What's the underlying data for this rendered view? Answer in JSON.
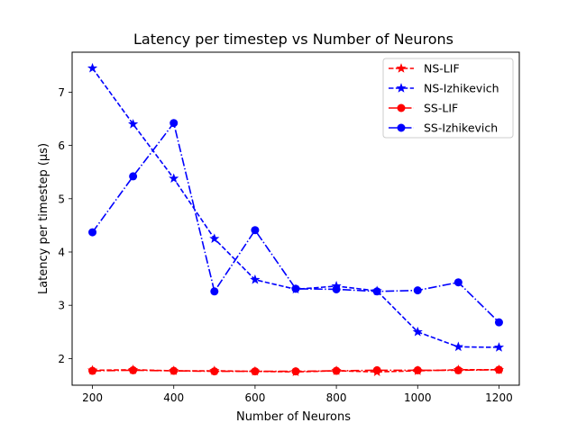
{
  "chart_data": {
    "type": "line",
    "title": "Latency per timestep vs Number of Neurons",
    "xlabel": "Number of Neurons",
    "ylabel": "Latency per timestep (µs)",
    "xlim": [
      150,
      1250
    ],
    "ylim": [
      1.5,
      7.75
    ],
    "xticks": [
      200,
      400,
      600,
      800,
      1000,
      1200
    ],
    "yticks": [
      2,
      3,
      4,
      5,
      6,
      7
    ],
    "grid": false,
    "legend_position": "top-right",
    "x": [
      200,
      300,
      400,
      500,
      600,
      700,
      800,
      900,
      1000,
      1100,
      1200
    ],
    "series": [
      {
        "name": "NS-LIF",
        "color": "#ff0000",
        "linestyle": "dashed",
        "marker": "star",
        "values": [
          1.78,
          1.79,
          1.77,
          1.77,
          1.76,
          1.75,
          1.77,
          1.75,
          1.77,
          1.79,
          1.79
        ]
      },
      {
        "name": "NS-Izhikevich",
        "color": "#0000ff",
        "linestyle": "dashed",
        "marker": "star",
        "values": [
          7.45,
          6.4,
          5.38,
          4.25,
          3.48,
          3.3,
          3.36,
          3.27,
          2.5,
          2.22,
          2.21
        ]
      },
      {
        "name": "SS-LIF",
        "color": "#ff0000",
        "linestyle": "dashdot",
        "marker": "circle",
        "values": [
          1.77,
          1.78,
          1.77,
          1.76,
          1.76,
          1.76,
          1.77,
          1.78,
          1.78,
          1.78,
          1.79
        ]
      },
      {
        "name": "SS-Izhikevich",
        "color": "#0000ff",
        "linestyle": "dashdot",
        "marker": "circle",
        "values": [
          4.37,
          5.42,
          6.42,
          3.26,
          4.41,
          3.31,
          3.3,
          3.26,
          3.28,
          3.43,
          2.68
        ]
      }
    ]
  }
}
